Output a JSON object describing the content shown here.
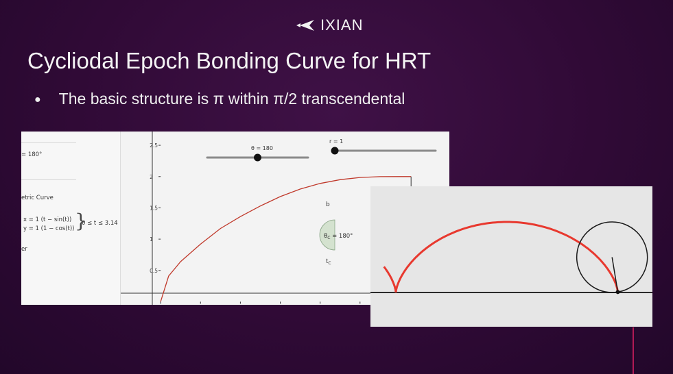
{
  "logo": {
    "text": "IXIAN",
    "icon": "ixian-chevron-icon"
  },
  "slide": {
    "title": "Cycliodal Epoch Bonding Curve for HRT",
    "bullet": "The basic structure is π within π/2 transcendental",
    "bullet_marker": "●"
  },
  "geogebra": {
    "algebra": {
      "theta_value": "= 180°",
      "curve_label": "etric Curve",
      "x_eq": "x = 1 (t − sin(t))",
      "y_eq": "y = 1 (1 − cos(t))",
      "brace": "}",
      "range": "0 ≤ t ≤ 3.14",
      "partial": "er"
    },
    "sliders": {
      "theta": {
        "label": "θ = 180",
        "value": 180,
        "min": 0,
        "max": 360
      },
      "r": {
        "label": "r = 1",
        "value": 1,
        "min": 1,
        "max": 10
      }
    },
    "point_label_b": "b",
    "point_label_tc": "t",
    "point_label_tc_sub": "C",
    "angle_label": "θ",
    "angle_label_sub": "C",
    "angle_label_value": " = 180°"
  },
  "chart_data": {
    "type": "line",
    "series": [
      {
        "x": [
          0,
          0.1,
          0.25,
          0.5,
          0.75,
          1.0,
          1.25,
          1.5,
          1.75,
          2.0,
          2.25,
          2.5,
          2.75,
          3.0,
          3.14
        ],
        "y": [
          0,
          0.41,
          0.64,
          0.92,
          1.17,
          1.36,
          1.53,
          1.68,
          1.8,
          1.89,
          1.95,
          1.985,
          1.998,
          2.0,
          2.0
        ]
      }
    ],
    "x_ticks": [
      "0",
      "0.5",
      "1",
      "1.5",
      "2",
      "2.5",
      "3",
      "3.5"
    ],
    "y_ticks": [
      "0.5",
      "1",
      "1.5",
      "2",
      "2.5"
    ],
    "xlim": [
      -0.5,
      3.62
    ],
    "ylim": [
      -0.05,
      2.72
    ],
    "line_color": "#c0392b",
    "vertical_marker_x": 3.14
  },
  "cycloid_panel": {
    "curve_color": "#e8392f",
    "radius": 1,
    "t_end": 6.12
  }
}
